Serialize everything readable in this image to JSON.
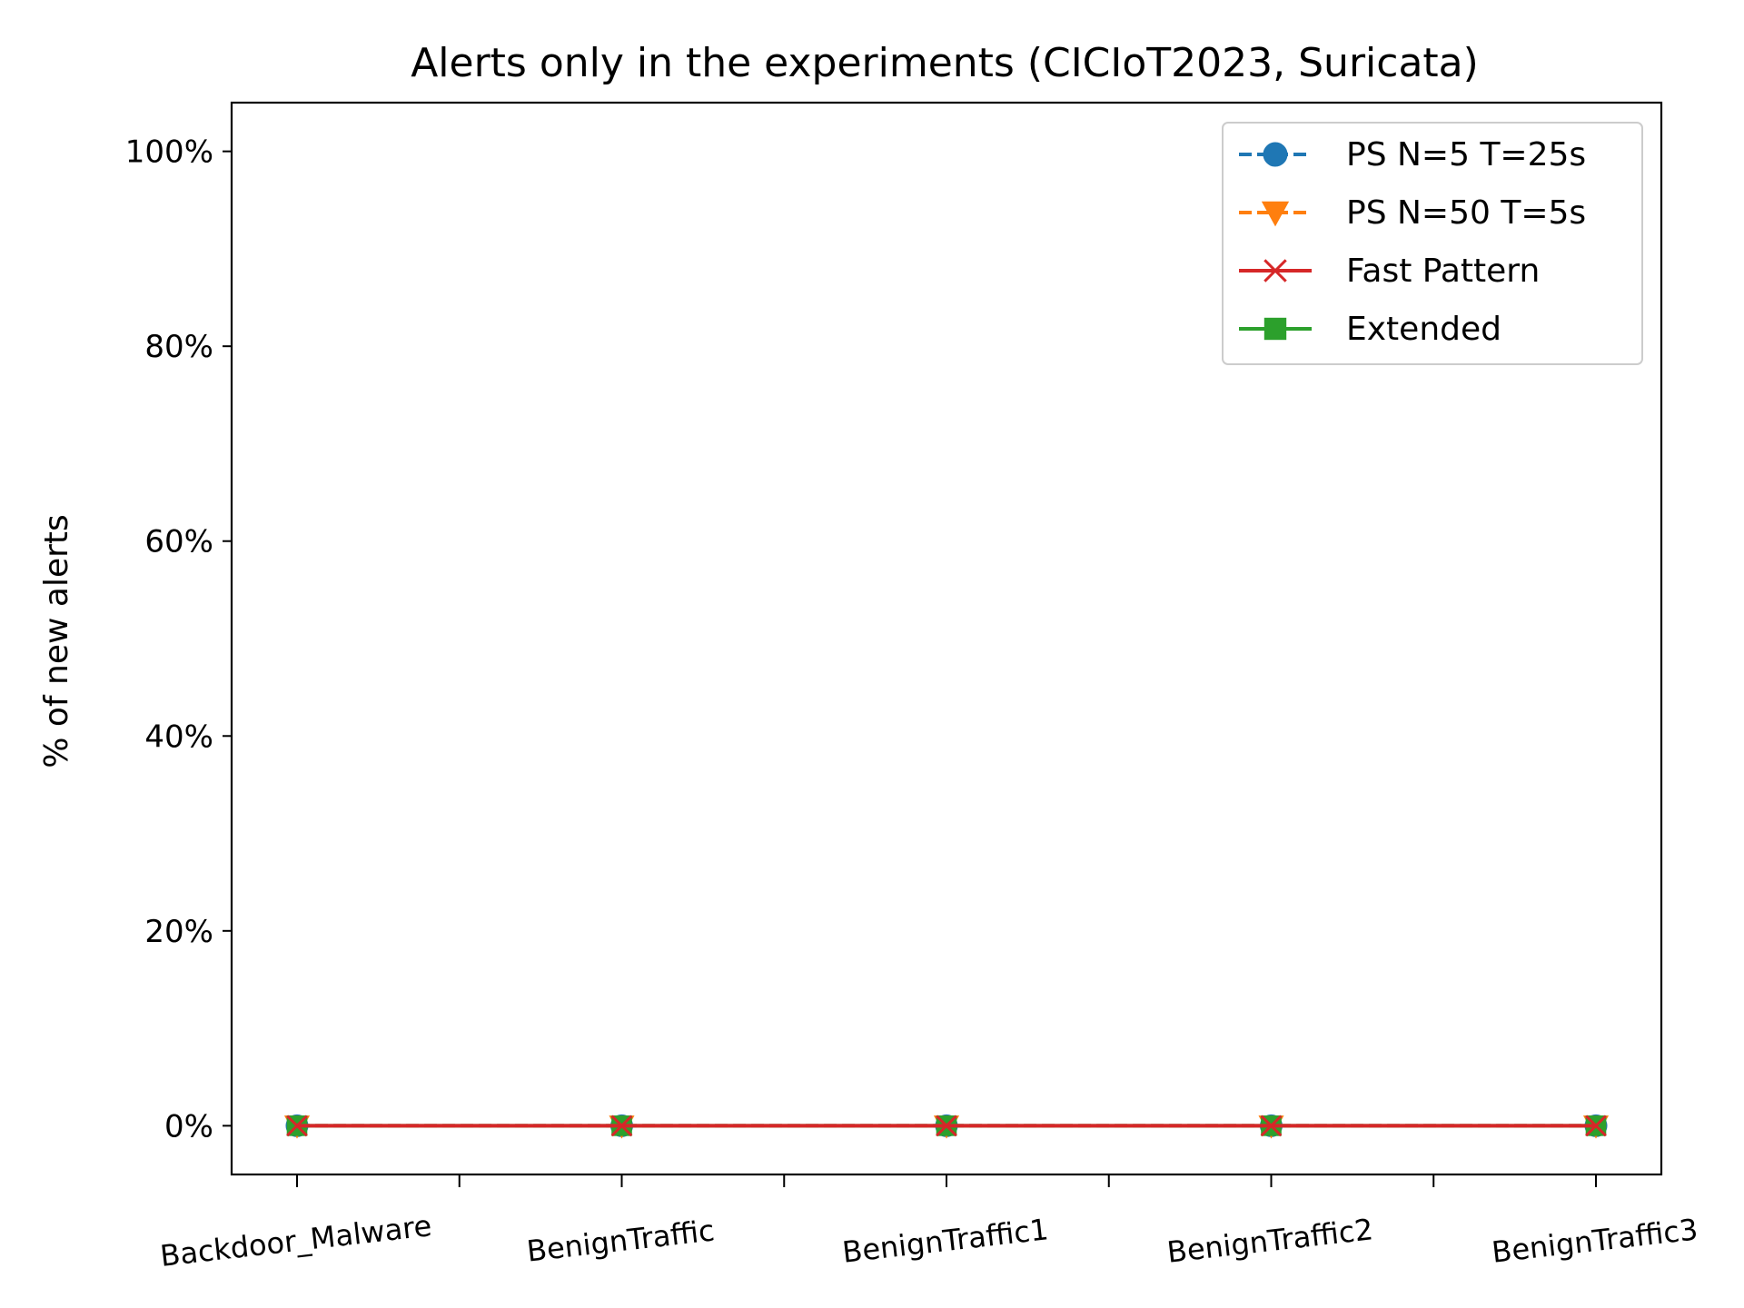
{
  "chart_data": {
    "type": "line",
    "title": "Alerts only in the experiments (CICIoT2023, Suricata)",
    "xlabel": "",
    "ylabel": "% of new alerts",
    "categories": [
      "Backdoor_Malware",
      "BenignTraffic",
      "BenignTraffic1",
      "BenignTraffic2",
      "BenignTraffic3"
    ],
    "yticks": [
      "0%",
      "20%",
      "40%",
      "60%",
      "80%",
      "100%"
    ],
    "ylim": [
      -5,
      105
    ],
    "grid": false,
    "legend_position": "top-right",
    "series": [
      {
        "name": "PS N=5 T=25s",
        "values": [
          0,
          0,
          0,
          0,
          0
        ],
        "color": "#1f77b4",
        "marker": "circle",
        "linestyle": "dashed"
      },
      {
        "name": "PS N=50 T=5s",
        "values": [
          0,
          0,
          0,
          0,
          0
        ],
        "color": "#ff7f0e",
        "marker": "triangle-down",
        "linestyle": "dashed"
      },
      {
        "name": "Fast Pattern",
        "values": [
          0,
          0,
          0,
          0,
          0
        ],
        "color": "#d62728",
        "marker": "x",
        "linestyle": "solid"
      },
      {
        "name": "Extended",
        "values": [
          0,
          0,
          0,
          0,
          0
        ],
        "color": "#2ca02c",
        "marker": "square",
        "linestyle": "solid"
      }
    ]
  }
}
